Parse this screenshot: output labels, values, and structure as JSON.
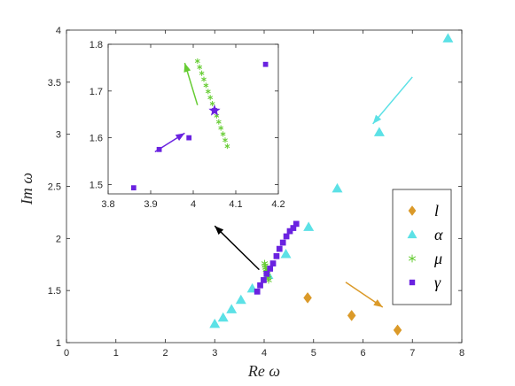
{
  "chart_data": [
    {
      "type": "scatter",
      "xlabel": "Re ω",
      "ylabel": "Im ω",
      "xlim": [
        0,
        8
      ],
      "ylim": [
        1,
        4
      ],
      "xticks": [
        "0",
        "1",
        "2",
        "3",
        "4",
        "5",
        "6",
        "7",
        "8"
      ],
      "yticks": [
        "1",
        "1.5",
        "2",
        "2.5",
        "3",
        "3.5",
        "4"
      ],
      "legend_position": "right",
      "series": [
        {
          "name": "l",
          "marker": "diamond",
          "color": "#DB9A29",
          "x": [
            4.88,
            5.77,
            6.7
          ],
          "y": [
            1.43,
            1.26,
            1.12
          ]
        },
        {
          "name": "α",
          "marker": "triangle",
          "color": "#5CE1E6",
          "x": [
            3.0,
            3.17,
            3.34,
            3.53,
            3.76,
            4.08,
            4.44,
            4.9,
            5.48,
            6.33,
            7.72
          ],
          "y": [
            1.18,
            1.24,
            1.32,
            1.41,
            1.52,
            1.65,
            1.85,
            2.11,
            2.48,
            3.02,
            3.92
          ]
        },
        {
          "name": "μ",
          "marker": "asterisk",
          "color": "#66CC33",
          "x": [
            4.01,
            4.02,
            4.03,
            4.04,
            4.05,
            4.06,
            4.07,
            4.08,
            4.09
          ],
          "y": [
            1.76,
            1.74,
            1.72,
            1.7,
            1.68,
            1.66,
            1.64,
            1.62,
            1.6
          ]
        },
        {
          "name": "γ",
          "marker": "square",
          "color": "#6A22E0",
          "x": [
            3.86,
            3.92,
            3.99,
            4.05,
            4.12,
            4.18,
            4.25,
            4.31,
            4.38,
            4.45,
            4.52,
            4.59,
            4.65
          ],
          "y": [
            1.49,
            1.55,
            1.6,
            1.66,
            1.71,
            1.76,
            1.83,
            1.9,
            1.96,
            2.02,
            2.07,
            2.1,
            2.14
          ]
        }
      ],
      "arrows": [
        {
          "color": "#5CE1E6",
          "from": [
            7.0,
            3.55
          ],
          "to": [
            6.2,
            3.1
          ]
        },
        {
          "color": "#DB9A29",
          "from": [
            5.65,
            1.58
          ],
          "to": [
            6.4,
            1.34
          ]
        },
        {
          "color": "#000000",
          "from": [
            3.9,
            1.7
          ],
          "to": [
            3.0,
            2.12
          ]
        }
      ]
    },
    {
      "type": "scatter",
      "inset": true,
      "xlim": [
        3.8,
        4.2
      ],
      "ylim": [
        1.48,
        1.8
      ],
      "xticks": [
        "3.8",
        "3.9",
        "4",
        "4.1",
        "4.2"
      ],
      "yticks": [
        "1.5",
        "1.6",
        "1.7",
        "1.8"
      ],
      "series": [
        {
          "name": "μ",
          "marker": "asterisk",
          "color": "#66CC33",
          "x": [
            4.01,
            4.015,
            4.02,
            4.025,
            4.03,
            4.035,
            4.04,
            4.045,
            4.05,
            4.055,
            4.06,
            4.065,
            4.07,
            4.075,
            4.08
          ],
          "y": [
            1.764,
            1.751,
            1.738,
            1.725,
            1.712,
            1.699,
            1.686,
            1.673,
            1.66,
            1.647,
            1.634,
            1.621,
            1.608,
            1.595,
            1.582
          ]
        },
        {
          "name": "γ",
          "marker": "square",
          "color": "#6A22E0",
          "x": [
            3.86,
            3.92,
            3.99,
            4.05,
            4.17
          ],
          "y": [
            1.493,
            1.575,
            1.6,
            1.658,
            1.757
          ]
        },
        {
          "name": "highlight",
          "marker": "star",
          "color": "#6A22E0",
          "x": [
            4.05
          ],
          "y": [
            1.658
          ]
        }
      ],
      "arrows": [
        {
          "color": "#66CC33",
          "from": [
            4.01,
            1.67
          ],
          "to": [
            3.98,
            1.76
          ]
        },
        {
          "color": "#6A22E0",
          "from": [
            3.91,
            1.57
          ],
          "to": [
            3.98,
            1.61
          ]
        }
      ]
    }
  ],
  "legend": [
    {
      "label": "l",
      "marker": "diamond",
      "color": "#DB9A29"
    },
    {
      "label": "α",
      "marker": "triangle",
      "color": "#5CE1E6"
    },
    {
      "label": "μ",
      "marker": "asterisk",
      "color": "#66CC33"
    },
    {
      "label": "γ",
      "marker": "square",
      "color": "#6A22E0"
    }
  ]
}
